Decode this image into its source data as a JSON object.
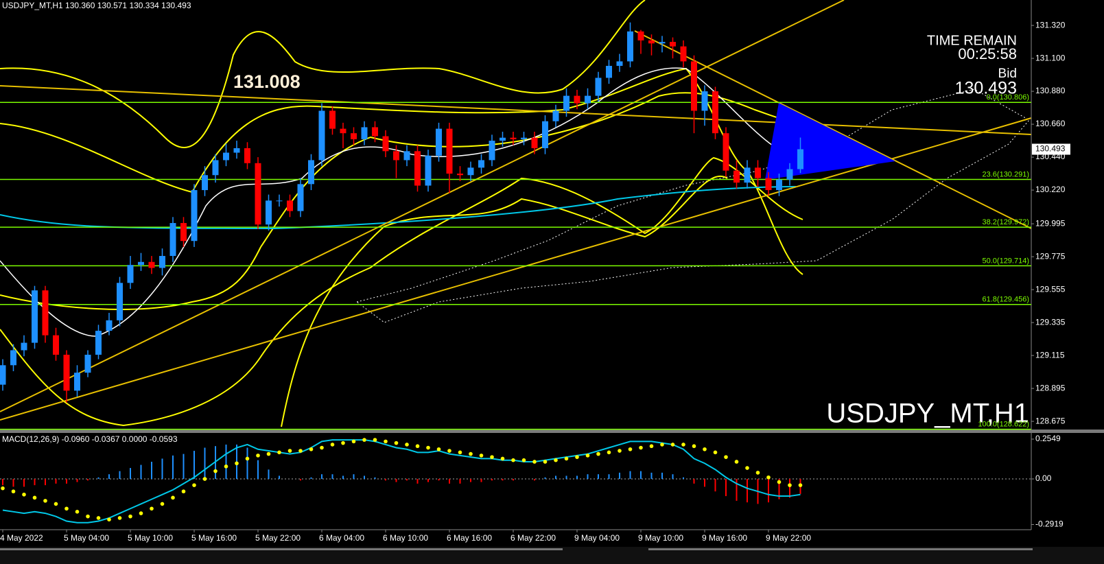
{
  "chart_data": [
    {
      "type": "candlestick",
      "title": "USDJPY_MT,H1  130.360 130.571 130.334 130.493",
      "categories": [
        "4 May 2022",
        null,
        null,
        null,
        null,
        null,
        "5 May 04:00",
        null,
        null,
        null,
        null,
        null,
        "5 May 10:00",
        null,
        null,
        null,
        null,
        null,
        "5 May 16:00",
        null,
        null,
        null,
        null,
        null,
        "5 May 22:00",
        null,
        null,
        null,
        null,
        null,
        "6 May 04:00",
        null,
        null,
        null,
        null,
        null,
        "6 May 10:00",
        null,
        null,
        null,
        null,
        null,
        "6 May 16:00",
        null,
        null,
        null,
        null,
        null,
        "6 May 22:00",
        null,
        null,
        null,
        null,
        null,
        "9 May 04:00",
        null,
        null,
        null,
        null,
        null,
        "9 May 10:00",
        null,
        null,
        null,
        null,
        null,
        "9 May 16:00",
        null,
        null,
        null,
        null,
        null,
        "9 May 22:00",
        null,
        null,
        null
      ],
      "open": [
        128.92,
        129.05,
        129.15,
        129.2,
        129.55,
        129.25,
        129.12,
        128.88,
        129.0,
        129.12,
        129.28,
        129.35,
        129.6,
        129.72,
        129.74,
        129.7,
        129.78,
        130.0,
        129.88,
        130.22,
        130.32,
        130.42,
        130.47,
        130.5,
        130.4,
        129.99,
        130.15,
        130.15,
        130.08,
        130.26,
        130.42,
        130.75,
        130.63,
        130.6,
        130.56,
        130.64,
        130.58,
        130.48,
        130.42,
        130.48,
        130.25,
        130.45,
        130.63,
        130.33,
        130.32,
        130.37,
        130.42,
        130.55,
        130.57,
        130.56,
        130.57,
        130.5,
        130.68,
        130.75,
        130.85,
        130.8,
        130.85,
        130.97,
        131.05,
        131.08,
        131.28,
        131.22,
        131.2,
        131.21,
        131.18,
        131.08,
        130.75,
        130.88,
        130.6,
        130.35,
        130.27,
        130.37,
        130.3,
        130.22,
        130.29,
        130.36
      ],
      "high": [
        129.09,
        129.19,
        129.25,
        129.58,
        129.58,
        129.3,
        129.15,
        129.05,
        129.15,
        129.32,
        129.4,
        129.64,
        129.78,
        129.8,
        129.78,
        129.83,
        130.04,
        130.04,
        130.26,
        130.38,
        130.46,
        130.53,
        130.55,
        130.54,
        130.44,
        130.19,
        130.19,
        130.19,
        130.3,
        130.46,
        130.8,
        130.78,
        130.67,
        130.64,
        130.68,
        130.68,
        130.62,
        130.52,
        130.52,
        130.52,
        130.49,
        130.67,
        130.67,
        130.38,
        130.41,
        130.46,
        130.59,
        130.61,
        130.61,
        130.61,
        130.61,
        130.72,
        130.79,
        130.9,
        130.89,
        130.9,
        131.01,
        131.09,
        131.13,
        131.34,
        131.29,
        131.26,
        131.25,
        131.24,
        131.22,
        131.12,
        130.92,
        130.91,
        130.64,
        130.42,
        130.42,
        130.42,
        130.34,
        130.33,
        130.4,
        130.571
      ],
      "low": [
        128.88,
        129.01,
        129.11,
        129.16,
        129.2,
        129.08,
        128.8,
        128.84,
        128.97,
        129.09,
        129.25,
        129.31,
        129.56,
        129.68,
        129.66,
        129.65,
        129.74,
        129.84,
        129.84,
        130.18,
        130.27,
        130.38,
        130.43,
        130.36,
        129.96,
        129.95,
        130.11,
        130.04,
        130.04,
        130.22,
        130.38,
        130.59,
        130.5,
        130.52,
        130.52,
        130.54,
        130.44,
        130.3,
        130.38,
        130.21,
        130.21,
        130.41,
        130.2,
        130.28,
        130.28,
        130.33,
        130.38,
        130.51,
        130.52,
        130.52,
        130.46,
        130.46,
        130.64,
        130.71,
        130.76,
        130.76,
        130.81,
        130.93,
        131.01,
        131.04,
        131.13,
        131.12,
        131.14,
        131.1,
        131.04,
        130.6,
        130.65,
        130.56,
        130.31,
        130.23,
        130.23,
        130.24,
        130.18,
        130.18,
        130.25,
        130.334
      ],
      "close": [
        129.05,
        129.15,
        129.2,
        129.55,
        129.25,
        129.12,
        128.88,
        129.0,
        129.12,
        129.28,
        129.35,
        129.6,
        129.72,
        129.74,
        129.7,
        129.78,
        130.0,
        129.88,
        130.22,
        130.32,
        130.42,
        130.47,
        130.5,
        130.4,
        129.99,
        130.15,
        130.15,
        130.08,
        130.26,
        130.42,
        130.75,
        130.63,
        130.6,
        130.56,
        130.64,
        130.58,
        130.48,
        130.42,
        130.48,
        130.25,
        130.45,
        130.63,
        130.33,
        130.32,
        130.37,
        130.42,
        130.55,
        130.57,
        130.56,
        130.57,
        130.5,
        130.68,
        130.75,
        130.85,
        130.8,
        130.85,
        130.97,
        131.05,
        131.08,
        131.28,
        131.22,
        131.2,
        131.21,
        131.18,
        131.08,
        130.75,
        130.88,
        130.6,
        130.35,
        130.27,
        130.37,
        130.3,
        130.22,
        130.29,
        130.36,
        130.493
      ],
      "up_color": "#1e90ff",
      "down_color": "#ff0000",
      "ylim": [
        128.625,
        131.49
      ],
      "yticks": [
        {
          "value": 131.32,
          "label": "131.320"
        },
        {
          "value": 131.1,
          "label": "131.100"
        },
        {
          "value": 130.88,
          "label": "130.880"
        },
        {
          "value": 130.66,
          "label": "130.660"
        },
        {
          "value": 130.44,
          "label": "130.440"
        },
        {
          "value": 130.22,
          "label": "130.220"
        },
        129.995,
        129.775,
        129.555,
        129.335,
        129.115,
        128.895,
        128.675
      ],
      "levels": [
        {
          "value": 130.806,
          "label": "0.0(130.806)"
        },
        {
          "value": 130.291,
          "label": "23.6(130.291)"
        },
        {
          "value": 129.972,
          "label": "38.2(129.972)"
        },
        {
          "value": 129.714,
          "label": "50.0(129.714)"
        },
        {
          "value": 129.456,
          "label": "61.8(129.456)"
        },
        {
          "value": 128.622,
          "label": "100.0(128.622)"
        }
      ],
      "level_color": "#7cfc00",
      "annotation": 131.008,
      "time_remain_label": "TIME REMAIN",
      "time_remain": "00:25:58",
      "bid_label": "Bid",
      "symbol": "USDJPY_MT,H1"
    },
    {
      "type": "macd",
      "title": "MACD(12,26,9) -0.0960 -0.0367 0.0000 -0.0593",
      "ylim": [
        -0.325,
        0.29
      ],
      "yticks": [
        0.2549,
        {
          "value": 0,
          "label": "0.00"
        },
        -0.2919
      ],
      "series": [
        {
          "style": "bar",
          "color": "#1e90ff",
          "negative_color": "#ff0000",
          "values": [
            -0.04,
            -0.05,
            -0.05,
            -0.04,
            -0.04,
            -0.03,
            -0.03,
            -0.02,
            -0.01,
            0.01,
            0.03,
            0.05,
            0.07,
            0.09,
            0.11,
            0.13,
            0.15,
            0.16,
            0.18,
            0.2,
            0.21,
            0.22,
            0.22,
            0.2,
            0.12,
            0.06,
            0.02,
            0.0,
            -0.01,
            0.01,
            0.03,
            0.03,
            0.02,
            0.03,
            0.02,
            0.01,
            -0.01,
            -0.02,
            -0.01,
            -0.03,
            -0.02,
            -0.01,
            -0.03,
            -0.03,
            -0.02,
            -0.02,
            -0.01,
            -0.01,
            -0.01,
            0.0,
            -0.01,
            0.01,
            0.02,
            0.02,
            0.02,
            0.03,
            0.03,
            0.03,
            0.04,
            0.05,
            0.05,
            0.04,
            0.04,
            0.03,
            0.01,
            -0.03,
            -0.05,
            -0.08,
            -0.11,
            -0.14,
            -0.15,
            -0.16,
            -0.15,
            -0.13,
            -0.12,
            -0.096
          ]
        },
        {
          "style": "line",
          "color": "#00c8e8",
          "values": [
            -0.2,
            -0.21,
            -0.22,
            -0.21,
            -0.22,
            -0.24,
            -0.27,
            -0.28,
            -0.28,
            -0.27,
            -0.25,
            -0.22,
            -0.19,
            -0.16,
            -0.13,
            -0.1,
            -0.07,
            -0.03,
            0.01,
            0.06,
            0.11,
            0.16,
            0.2,
            0.22,
            0.19,
            0.18,
            0.17,
            0.16,
            0.17,
            0.2,
            0.24,
            0.25,
            0.25,
            0.25,
            0.25,
            0.24,
            0.22,
            0.2,
            0.19,
            0.17,
            0.17,
            0.18,
            0.16,
            0.15,
            0.14,
            0.13,
            0.13,
            0.12,
            0.12,
            0.11,
            0.11,
            0.12,
            0.13,
            0.14,
            0.15,
            0.16,
            0.18,
            0.2,
            0.22,
            0.24,
            0.24,
            0.24,
            0.23,
            0.22,
            0.19,
            0.13,
            0.1,
            0.06,
            0.01,
            -0.03,
            -0.06,
            -0.08,
            -0.1,
            -0.11,
            -0.11,
            -0.1
          ]
        },
        {
          "style": "dots",
          "color": "#ffff00",
          "values": [
            -0.06,
            -0.08,
            -0.1,
            -0.12,
            -0.14,
            -0.16,
            -0.19,
            -0.21,
            -0.24,
            -0.25,
            -0.26,
            -0.25,
            -0.24,
            -0.22,
            -0.19,
            -0.16,
            -0.12,
            -0.08,
            -0.04,
            0.0,
            0.05,
            0.08,
            0.1,
            0.13,
            0.15,
            0.16,
            0.17,
            0.18,
            0.18,
            0.19,
            0.2,
            0.22,
            0.23,
            0.24,
            0.25,
            0.25,
            0.24,
            0.23,
            0.22,
            0.21,
            0.2,
            0.19,
            0.18,
            0.17,
            0.16,
            0.15,
            0.14,
            0.13,
            0.12,
            0.12,
            0.11,
            0.11,
            0.12,
            0.13,
            0.14,
            0.15,
            0.16,
            0.17,
            0.18,
            0.19,
            0.2,
            0.21,
            0.22,
            0.22,
            0.22,
            0.21,
            0.19,
            0.17,
            0.14,
            0.11,
            0.07,
            0.04,
            0.01,
            -0.02,
            -0.04,
            -0.04
          ]
        }
      ]
    }
  ]
}
